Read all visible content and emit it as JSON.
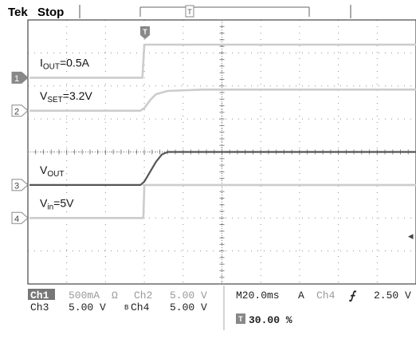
{
  "header": {
    "brand": "Tek",
    "status": "Stop"
  },
  "chart_data": {
    "type": "line",
    "x_unit": "ms",
    "x_per_div": 20,
    "x_divisions": 10,
    "trigger_position_percent": 30.0,
    "y_divisions": 8,
    "grid": true,
    "colors": {
      "trace_light": "#cccccc",
      "trace_dark": "#555555",
      "grid": "#333333",
      "background": "#ffffff"
    },
    "series": [
      {
        "name": "IOUT",
        "channel": 1,
        "label_main": "I",
        "label_sub": "OUT",
        "label_value": "=0.5A",
        "marker": "1",
        "scale": "500mA",
        "unit_symbol": "Ω",
        "baseline_div": 2.25,
        "points": [
          [
            -60,
            0
          ],
          [
            -1,
            0
          ],
          [
            0,
            0.5
          ],
          [
            140,
            0.5
          ]
        ]
      },
      {
        "name": "VSET",
        "channel": 2,
        "label_main": "V",
        "label_sub": "SET",
        "label_value": "=3.2V",
        "marker": "2",
        "scale": "5.00 V",
        "baseline_div": 1.25,
        "points": [
          [
            -60,
            0
          ],
          [
            -2,
            0
          ],
          [
            0,
            0.4
          ],
          [
            3,
            1.6
          ],
          [
            6,
            2.5
          ],
          [
            12,
            3.0
          ],
          [
            30,
            3.2
          ],
          [
            140,
            3.2
          ]
        ]
      },
      {
        "name": "VOUT",
        "channel": 3,
        "label_main": "V",
        "label_sub": "OUT",
        "label_value": "",
        "marker": "3",
        "scale": "5.00 V",
        "baseline_div": -1.0,
        "points": [
          [
            -60,
            0
          ],
          [
            -2,
            0
          ],
          [
            0,
            0.5
          ],
          [
            3,
            2.0
          ],
          [
            6,
            3.5
          ],
          [
            9,
            4.6
          ],
          [
            12,
            5.0
          ],
          [
            140,
            5.0
          ]
        ]
      },
      {
        "name": "Vin",
        "channel": 4,
        "label_main": "V",
        "label_sub": "in",
        "label_value": "=5V",
        "marker": "4",
        "scale": "5.00 V",
        "coupling": "BW",
        "baseline_div": -2.0,
        "points": [
          [
            -60,
            0
          ],
          [
            -0.5,
            0
          ],
          [
            0,
            5
          ],
          [
            140,
            5
          ]
        ]
      }
    ],
    "trigger_level_marker": "◂"
  },
  "readout": {
    "ch1": "Ch1",
    "ch1_scale": "500mA",
    "ch1_unit": "Ω",
    "ch2": "Ch2",
    "ch2_scale": "5.00 V",
    "ch3": "Ch3",
    "ch3_scale": "5.00 V",
    "ch4": "Ch4",
    "ch4_bw": "B",
    "ch4_scale": "5.00 V",
    "timebase": "M20.0ms",
    "trig_mode": "A",
    "trig_source": "Ch4",
    "trig_edge": "⨍",
    "trig_level": "2.50 V",
    "trig_pos_marker": "T",
    "trig_pos": "30.00 %"
  }
}
